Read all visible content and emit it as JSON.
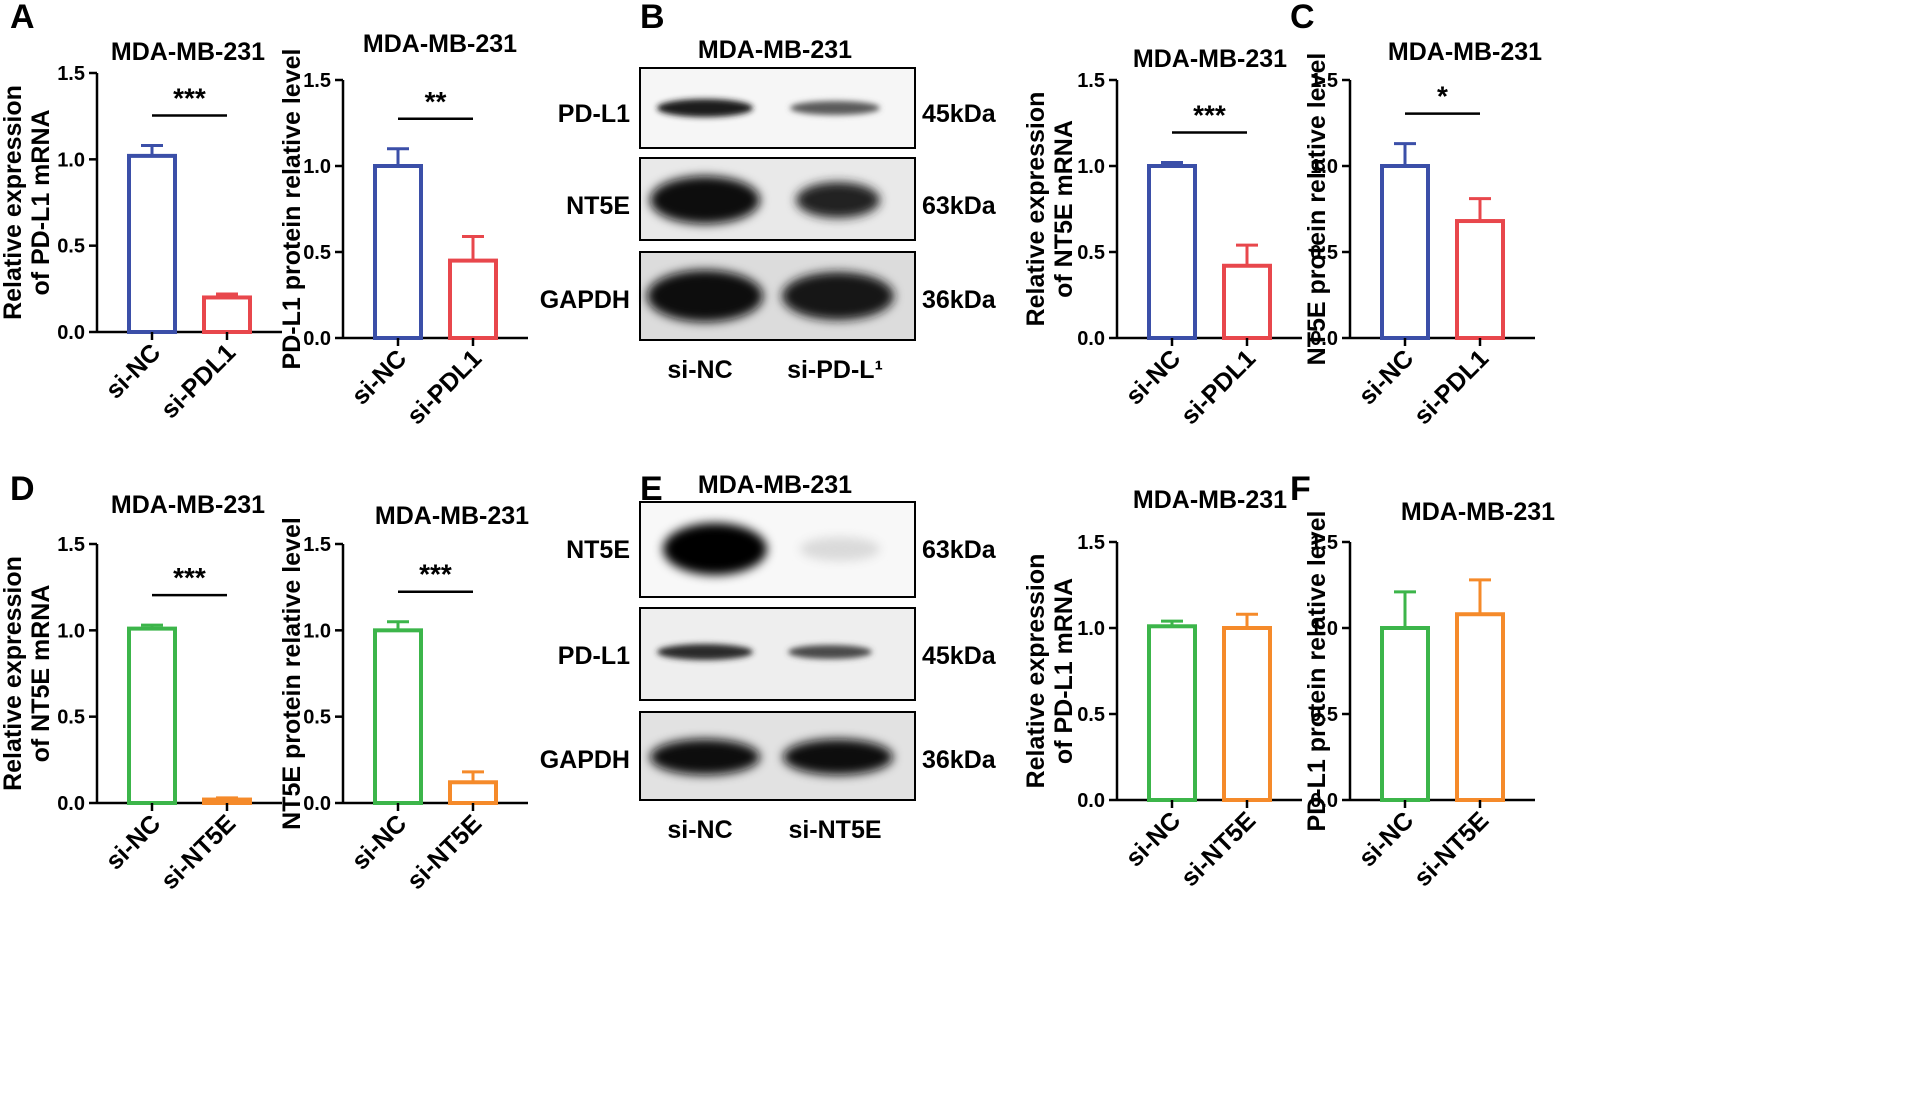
{
  "panel_letters": {
    "A": "A",
    "B": "B",
    "C": "C",
    "D": "D",
    "E": "E",
    "F": "F"
  },
  "colors": {
    "blue": "#3b4fa8",
    "red": "#e8474c",
    "green": "#3cb54a",
    "orange": "#f58a2a",
    "axis": "#000000"
  },
  "chart_data": [
    {
      "panel": "A",
      "type": "bar",
      "title": "MDA-MB-231",
      "ylabel": [
        "Relative expression",
        "of PD-L1 mRNA"
      ],
      "categories": [
        "si-NC",
        "si-PDL1"
      ],
      "values": [
        1.02,
        0.2
      ],
      "errors": [
        0.06,
        0.02
      ],
      "bar_colors": [
        "blue",
        "red"
      ],
      "ylim": [
        0,
        1.5
      ],
      "ticks": [
        "0.0",
        "0.5",
        "1.0",
        "1.5"
      ],
      "significance": "***"
    },
    {
      "panel": "A",
      "type": "bar",
      "title": "MDA-MB-231",
      "ylabel": [
        "PD-L1 protein relative level"
      ],
      "categories": [
        "si-NC",
        "si-PDL1"
      ],
      "values": [
        1.0,
        0.45
      ],
      "errors": [
        0.1,
        0.14
      ],
      "bar_colors": [
        "blue",
        "red"
      ],
      "ylim": [
        0,
        1.5
      ],
      "ticks": [
        "0.0",
        "0.5",
        "1.0",
        "1.5"
      ],
      "significance": "**"
    },
    {
      "panel": "C",
      "type": "bar",
      "title": "MDA-MB-231",
      "ylabel": [
        "Relative expression",
        "of NT5E mRNA"
      ],
      "categories": [
        "si-NC",
        "si-PDL1"
      ],
      "values": [
        1.0,
        0.42
      ],
      "errors": [
        0.02,
        0.12
      ],
      "bar_colors": [
        "blue",
        "red"
      ],
      "ylim": [
        0,
        1.5
      ],
      "ticks": [
        "0.0",
        "0.5",
        "1.0",
        "1.5"
      ],
      "significance": "***"
    },
    {
      "panel": "C",
      "type": "bar",
      "title": "MDA-MB-231",
      "ylabel": [
        "NT5E protein relative level"
      ],
      "categories": [
        "si-NC",
        "si-PDL1"
      ],
      "values": [
        1.0,
        0.68
      ],
      "errors": [
        0.13,
        0.13
      ],
      "bar_colors": [
        "blue",
        "red"
      ],
      "ylim": [
        0,
        1.5
      ],
      "ticks": [
        "0.0",
        "0.5",
        "1.0",
        "1.5"
      ],
      "significance": "*"
    },
    {
      "panel": "D",
      "type": "bar",
      "title": "MDA-MB-231",
      "ylabel": [
        "Relative expression",
        "of NT5E mRNA"
      ],
      "categories": [
        "si-NC",
        "si-NT5E"
      ],
      "values": [
        1.01,
        0.02
      ],
      "errors": [
        0.02,
        0.01
      ],
      "bar_colors": [
        "green",
        "orange"
      ],
      "ylim": [
        0,
        1.5
      ],
      "ticks": [
        "0.0",
        "0.5",
        "1.0",
        "1.5"
      ],
      "significance": "***"
    },
    {
      "panel": "D",
      "type": "bar",
      "title": "MDA-MB-231",
      "ylabel": [
        "NT5E protein relative level"
      ],
      "categories": [
        "si-NC",
        "si-NT5E"
      ],
      "values": [
        1.0,
        0.12
      ],
      "errors": [
        0.05,
        0.06
      ],
      "bar_colors": [
        "green",
        "orange"
      ],
      "ylim": [
        0,
        1.5
      ],
      "ticks": [
        "0.0",
        "0.5",
        "1.0",
        "1.5"
      ],
      "significance": "***"
    },
    {
      "panel": "F",
      "type": "bar",
      "title": "MDA-MB-231",
      "ylabel": [
        "Relative expression",
        "of PD-L1 mRNA"
      ],
      "categories": [
        "si-NC",
        "si-NT5E"
      ],
      "values": [
        1.01,
        1.0
      ],
      "errors": [
        0.03,
        0.08
      ],
      "bar_colors": [
        "green",
        "orange"
      ],
      "ylim": [
        0,
        1.5
      ],
      "ticks": [
        "0.0",
        "0.5",
        "1.0",
        "1.5"
      ],
      "significance": ""
    },
    {
      "panel": "F",
      "type": "bar",
      "title": "MDA-MB-231",
      "ylabel": [
        "PD-L1 protein relative level"
      ],
      "categories": [
        "si-NC",
        "si-NT5E"
      ],
      "values": [
        1.0,
        1.08
      ],
      "errors": [
        0.21,
        0.2
      ],
      "bar_colors": [
        "green",
        "orange"
      ],
      "ylim": [
        0,
        1.5
      ],
      "ticks": [
        "0.0",
        "0.5",
        "1.0",
        "1.5"
      ],
      "significance": ""
    }
  ],
  "blots": [
    {
      "panel": "B",
      "title": "MDA-MB-231",
      "rows": [
        {
          "label": "PD-L1",
          "size": "45kDa"
        },
        {
          "label": "NT5E",
          "size": "63kDa"
        },
        {
          "label": "GAPDH",
          "size": "36kDa"
        }
      ],
      "lanes": [
        "si-NC",
        "si-PD-L¹"
      ]
    },
    {
      "panel": "E",
      "title": "MDA-MB-231",
      "rows": [
        {
          "label": "NT5E",
          "size": "63kDa"
        },
        {
          "label": "PD-L1",
          "size": "45kDa"
        },
        {
          "label": "GAPDH",
          "size": "36kDa"
        }
      ],
      "lanes": [
        "si-NC",
        "si-NT5E"
      ]
    }
  ]
}
